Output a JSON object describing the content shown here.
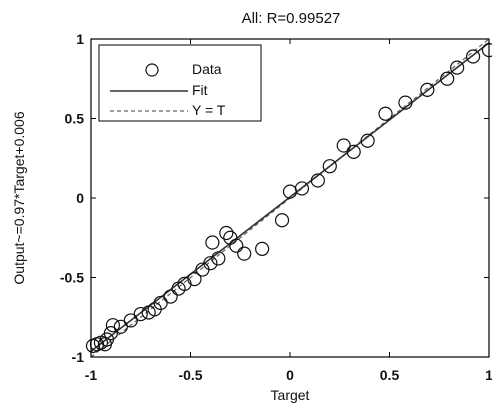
{
  "chart_data": {
    "type": "scatter",
    "title": "All: R=0.99527",
    "xlabel": "Target",
    "ylabel": "Output~=0.97*Target+0.006",
    "xlim": [
      -1,
      1
    ],
    "ylim": [
      -1,
      1
    ],
    "xticks": [
      -1,
      -0.5,
      0,
      0.5,
      1
    ],
    "yticks": [
      -1,
      -0.5,
      0,
      0.5,
      1
    ],
    "xtick_labels": [
      "-1",
      "-0.5",
      "0",
      "0.5",
      "1"
    ],
    "ytick_labels": [
      "-1",
      "-0.5",
      "0",
      "0.5",
      "1"
    ],
    "grid": false,
    "legend_position": "top-left",
    "legend": [
      {
        "label": "Data",
        "style": "circle"
      },
      {
        "label": "Fit",
        "style": "solid"
      },
      {
        "label": "Y = T",
        "style": "dashed"
      }
    ],
    "fit": {
      "slope": 0.97,
      "intercept": 0.006
    },
    "colors": {
      "data": "#111111",
      "fit": "#333333",
      "identity": "#666666",
      "axes": "#000000"
    },
    "points": [
      [
        -0.99,
        -0.93
      ],
      [
        -0.97,
        -0.92
      ],
      [
        -0.95,
        -0.91
      ],
      [
        -0.93,
        -0.92
      ],
      [
        -0.92,
        -0.89
      ],
      [
        -0.9,
        -0.85
      ],
      [
        -0.89,
        -0.8
      ],
      [
        -0.85,
        -0.81
      ],
      [
        -0.8,
        -0.77
      ],
      [
        -0.75,
        -0.73
      ],
      [
        -0.71,
        -0.72
      ],
      [
        -0.68,
        -0.7
      ],
      [
        -0.65,
        -0.66
      ],
      [
        -0.6,
        -0.62
      ],
      [
        -0.56,
        -0.57
      ],
      [
        -0.53,
        -0.54
      ],
      [
        -0.48,
        -0.51
      ],
      [
        -0.44,
        -0.45
      ],
      [
        -0.4,
        -0.41
      ],
      [
        -0.39,
        -0.28
      ],
      [
        -0.36,
        -0.38
      ],
      [
        -0.32,
        -0.22
      ],
      [
        -0.3,
        -0.25
      ],
      [
        -0.27,
        -0.3
      ],
      [
        -0.23,
        -0.35
      ],
      [
        -0.14,
        -0.32
      ],
      [
        -0.04,
        -0.14
      ],
      [
        0.0,
        0.04
      ],
      [
        0.06,
        0.06
      ],
      [
        0.14,
        0.11
      ],
      [
        0.2,
        0.2
      ],
      [
        0.27,
        0.33
      ],
      [
        0.32,
        0.29
      ],
      [
        0.39,
        0.36
      ],
      [
        0.48,
        0.53
      ],
      [
        0.58,
        0.6
      ],
      [
        0.69,
        0.68
      ],
      [
        0.79,
        0.75
      ],
      [
        0.84,
        0.82
      ],
      [
        0.92,
        0.89
      ],
      [
        1.0,
        0.93
      ]
    ]
  }
}
